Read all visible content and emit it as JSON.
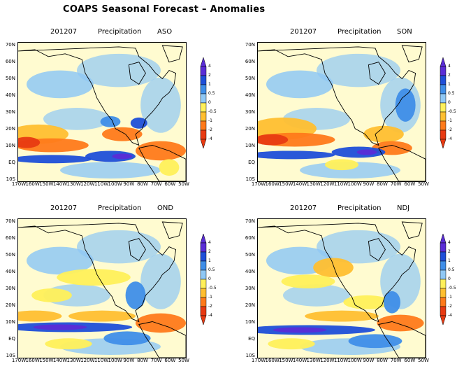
{
  "title": "COAPS Seasonal Forecast – Anomalies",
  "colors": {
    "wet_strong": "#5a2dd6",
    "wet_dark": "#1f4fd8",
    "wet_med": "#3f8ee8",
    "wet_light": "#8fc8f5",
    "neutral": "#fffbd0",
    "dry_light": "#fff05a",
    "dry_med": "#ffbf30",
    "dry_dark": "#ff7a1a",
    "dry_strong": "#e83a12"
  },
  "colorbar_levels": [
    "4",
    "2",
    "1",
    "0.5",
    "0",
    "-0.5",
    "-1",
    "-2",
    "-4"
  ],
  "y_ticks": [
    "70N",
    "60N",
    "50N",
    "40N",
    "30N",
    "20N",
    "10N",
    "EQ",
    "10S"
  ],
  "x_ticks": [
    "170W",
    "160W",
    "150W",
    "140W",
    "130W",
    "120W",
    "110W",
    "100W",
    "90W",
    "80W",
    "70W",
    "60W",
    "50W"
  ],
  "panels": [
    {
      "date": "201207",
      "variable": "Precipitation",
      "season": "ASO"
    },
    {
      "date": "201207",
      "variable": "Precipitation",
      "season": "SON"
    },
    {
      "date": "201207",
      "variable": "Precipitation",
      "season": "OND"
    },
    {
      "date": "201207",
      "variable": "Precipitation",
      "season": "NDJ"
    }
  ]
}
